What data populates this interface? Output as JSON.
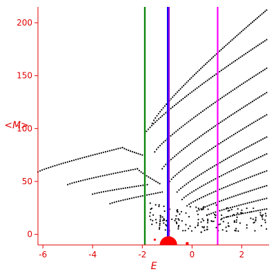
{
  "chart_data": {
    "type": "scatter",
    "title": "",
    "xlabel": "E",
    "ylabel": "<M>",
    "xlim": [
      -6.2,
      3.1
    ],
    "ylim": [
      -10,
      215
    ],
    "x_ticks": [
      -6,
      -4,
      -2,
      0,
      2
    ],
    "y_ticks": [
      0,
      50,
      100,
      150,
      200
    ],
    "grid": false,
    "legend": "none",
    "axis_color": "#e00000",
    "point_color": "#000000",
    "vertical_lines": [
      {
        "x": -1.9,
        "color": "#008000"
      },
      {
        "x": -0.98,
        "color": "#0000ff"
      },
      {
        "x": -0.93,
        "color": "#9400d3"
      },
      {
        "x": 1.03,
        "color": "#ff00ff"
      }
    ],
    "marker": {
      "x": -0.95,
      "y": -7,
      "radius": 0.35,
      "color": "#ff0000"
    },
    "series": [
      {
        "type": "curve",
        "from": [
          -6.2,
          59
        ],
        "to": [
          -2.8,
          82
        ]
      },
      {
        "type": "curve",
        "from": [
          -2.8,
          82
        ],
        "to": [
          -2.0,
          75
        ]
      },
      {
        "type": "curve",
        "from": [
          -5.0,
          47
        ],
        "to": [
          -2.2,
          62
        ]
      },
      {
        "type": "curve",
        "from": [
          -2.2,
          62
        ],
        "to": [
          -1.3,
          48
        ]
      },
      {
        "type": "curve",
        "from": [
          -4.0,
          38
        ],
        "to": [
          -1.8,
          47
        ]
      },
      {
        "type": "curve",
        "from": [
          -3.3,
          29
        ],
        "to": [
          -1.2,
          40
        ]
      },
      {
        "type": "curve",
        "from": [
          -1.6,
          105
        ],
        "to": [
          3.0,
          212
        ]
      },
      {
        "type": "curve",
        "from": [
          -1.9,
          95
        ],
        "to": [
          3.0,
          184
        ]
      },
      {
        "type": "curve",
        "from": [
          -1.5,
          78
        ],
        "to": [
          3.0,
          157
        ]
      },
      {
        "type": "curve",
        "from": [
          -1.2,
          62
        ],
        "to": [
          3.0,
          134
        ]
      },
      {
        "type": "curve",
        "from": [
          -0.9,
          50
        ],
        "to": [
          3.0,
          113
        ]
      },
      {
        "type": "curve",
        "from": [
          -0.6,
          40
        ],
        "to": [
          3.0,
          92
        ]
      },
      {
        "type": "curve",
        "from": [
          -0.4,
          33
        ],
        "to": [
          3.0,
          76
        ]
      },
      {
        "type": "curve",
        "from": [
          -0.2,
          27
        ],
        "to": [
          3.0,
          60
        ]
      },
      {
        "type": "curve",
        "from": [
          0.2,
          22
        ],
        "to": [
          3.0,
          46
        ]
      },
      {
        "type": "curve",
        "from": [
          0.6,
          18
        ],
        "to": [
          3.0,
          34
        ]
      },
      {
        "type": "curve",
        "from": [
          1.2,
          15
        ],
        "to": [
          3.0,
          24
        ]
      },
      {
        "type": "scatter_cloud",
        "x_range": [
          -1.7,
          3.0
        ],
        "y_range": [
          5,
          30
        ],
        "count": 160
      }
    ]
  }
}
